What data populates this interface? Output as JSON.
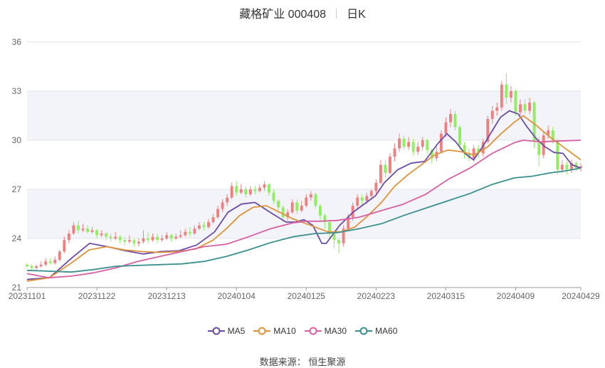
{
  "header": {
    "stock": "藏格矿业 000408",
    "period": "日K"
  },
  "source": {
    "label": "数据来源：",
    "value": "恒生聚源"
  },
  "chart_data": {
    "type": "candlestick",
    "ylim": [
      21,
      36
    ],
    "yticks": [
      "21",
      "24",
      "27",
      "30",
      "33",
      "36"
    ],
    "xticks": [
      {
        "label": "20231101",
        "i": 0
      },
      {
        "label": "20231122",
        "i": 15
      },
      {
        "label": "20231213",
        "i": 30
      },
      {
        "label": "20240104",
        "i": 45
      },
      {
        "label": "20240125",
        "i": 60
      },
      {
        "label": "20240223",
        "i": 75
      },
      {
        "label": "20240315",
        "i": 90
      },
      {
        "label": "20240409",
        "i": 105
      },
      {
        "label": "20240429",
        "i": 119
      }
    ],
    "up_color": "#f08080",
    "down_color": "#90ee60",
    "grid": true,
    "legend_position": "bottom",
    "candles": [
      [
        22.4,
        22.3,
        22.2,
        22.5
      ],
      [
        22.3,
        22.2,
        22.1,
        22.4
      ],
      [
        22.2,
        22.3,
        22.1,
        22.4
      ],
      [
        22.3,
        22.4,
        22.2,
        22.6
      ],
      [
        22.4,
        22.6,
        22.3,
        22.8
      ],
      [
        22.6,
        22.5,
        22.4,
        22.8
      ],
      [
        22.5,
        22.7,
        22.4,
        22.9
      ],
      [
        22.7,
        23.2,
        22.6,
        23.3
      ],
      [
        23.2,
        23.9,
        23.1,
        24.1
      ],
      [
        23.9,
        24.3,
        23.7,
        24.5
      ],
      [
        24.3,
        24.8,
        24.2,
        25.0
      ],
      [
        24.8,
        24.5,
        24.3,
        25.1
      ],
      [
        24.5,
        24.6,
        24.4,
        24.9
      ],
      [
        24.6,
        24.4,
        24.3,
        24.8
      ],
      [
        24.4,
        24.5,
        24.3,
        24.7
      ],
      [
        24.5,
        24.2,
        24.0,
        24.6
      ],
      [
        24.2,
        24.3,
        24.1,
        24.5
      ],
      [
        24.3,
        24.1,
        23.9,
        24.4
      ],
      [
        24.1,
        24.0,
        23.8,
        24.3
      ],
      [
        24.0,
        24.1,
        23.9,
        24.4
      ],
      [
        24.1,
        23.9,
        23.7,
        24.2
      ],
      [
        23.9,
        23.8,
        23.6,
        24.1
      ],
      [
        23.8,
        23.9,
        23.7,
        24.2
      ],
      [
        23.9,
        23.7,
        23.5,
        24.0
      ],
      [
        23.7,
        23.8,
        23.5,
        24.0
      ],
      [
        23.8,
        24.0,
        23.7,
        24.5
      ],
      [
        24.0,
        23.9,
        23.7,
        24.4
      ],
      [
        23.9,
        24.1,
        23.8,
        24.3
      ],
      [
        24.1,
        23.9,
        23.7,
        24.3
      ],
      [
        23.9,
        24.0,
        23.8,
        24.2
      ],
      [
        24.0,
        24.2,
        23.9,
        24.4
      ],
      [
        24.2,
        24.0,
        23.8,
        24.3
      ],
      [
        24.0,
        24.1,
        23.9,
        24.3
      ],
      [
        24.1,
        24.2,
        24.0,
        24.5
      ],
      [
        24.2,
        24.4,
        24.1,
        24.6
      ],
      [
        24.4,
        24.3,
        24.1,
        24.7
      ],
      [
        24.3,
        24.6,
        24.2,
        24.8
      ],
      [
        24.6,
        24.8,
        24.5,
        25.0
      ],
      [
        24.8,
        24.7,
        24.5,
        25.0
      ],
      [
        24.7,
        25.0,
        24.6,
        25.2
      ],
      [
        25.0,
        25.3,
        24.9,
        25.5
      ],
      [
        25.3,
        25.8,
        25.2,
        26.0
      ],
      [
        25.8,
        26.2,
        25.6,
        26.4
      ],
      [
        26.2,
        26.5,
        26.0,
        26.7
      ],
      [
        26.5,
        27.2,
        26.4,
        27.4
      ],
      [
        27.2,
        26.8,
        26.6,
        27.5
      ],
      [
        26.8,
        27.0,
        26.7,
        27.3
      ],
      [
        27.0,
        26.7,
        26.5,
        27.2
      ],
      [
        26.7,
        27.0,
        26.6,
        27.2
      ],
      [
        27.0,
        26.9,
        26.7,
        27.2
      ],
      [
        26.9,
        27.1,
        26.8,
        27.3
      ],
      [
        27.1,
        27.3,
        26.9,
        27.5
      ],
      [
        27.3,
        26.8,
        26.6,
        27.4
      ],
      [
        26.8,
        26.3,
        26.1,
        27.0
      ],
      [
        26.3,
        25.9,
        25.6,
        26.4
      ],
      [
        25.9,
        25.3,
        25.0,
        26.0
      ],
      [
        25.3,
        25.6,
        25.1,
        25.8
      ],
      [
        25.6,
        26.2,
        25.5,
        26.4
      ],
      [
        26.2,
        25.7,
        25.5,
        26.4
      ],
      [
        25.7,
        26.0,
        25.6,
        26.3
      ],
      [
        26.0,
        26.5,
        25.9,
        26.7
      ],
      [
        26.5,
        26.7,
        26.3,
        26.9
      ],
      [
        26.7,
        26.0,
        25.8,
        26.8
      ],
      [
        26.0,
        25.4,
        25.1,
        26.1
      ],
      [
        25.4,
        25.0,
        24.6,
        25.5
      ],
      [
        25.0,
        24.3,
        24.0,
        25.1
      ],
      [
        24.3,
        23.9,
        23.4,
        24.4
      ],
      [
        23.9,
        23.7,
        23.1,
        24.0
      ],
      [
        23.7,
        24.6,
        23.5,
        24.8
      ],
      [
        24.6,
        25.3,
        24.5,
        25.5
      ],
      [
        25.3,
        26.0,
        25.1,
        26.2
      ],
      [
        26.0,
        26.5,
        25.8,
        26.7
      ],
      [
        26.5,
        26.3,
        26.0,
        26.7
      ],
      [
        26.3,
        26.6,
        26.1,
        26.8
      ],
      [
        26.6,
        26.9,
        26.4,
        27.0
      ],
      [
        26.9,
        27.4,
        26.7,
        27.6
      ],
      [
        27.4,
        28.5,
        27.3,
        28.8
      ],
      [
        28.5,
        28.0,
        27.7,
        28.8
      ],
      [
        28.0,
        29.0,
        27.9,
        29.2
      ],
      [
        29.0,
        29.5,
        28.7,
        29.8
      ],
      [
        29.5,
        30.1,
        29.3,
        30.4
      ],
      [
        30.1,
        29.6,
        29.4,
        30.3
      ],
      [
        29.6,
        29.9,
        29.4,
        30.2
      ],
      [
        29.9,
        29.3,
        29.1,
        30.1
      ],
      [
        29.3,
        29.6,
        29.1,
        29.9
      ],
      [
        29.6,
        30.0,
        29.4,
        30.2
      ],
      [
        30.0,
        29.4,
        29.2,
        30.1
      ],
      [
        29.4,
        28.9,
        28.6,
        29.5
      ],
      [
        28.9,
        29.3,
        28.7,
        29.6
      ],
      [
        29.3,
        30.4,
        29.2,
        30.6
      ],
      [
        30.4,
        31.1,
        30.2,
        31.4
      ],
      [
        31.1,
        31.6,
        30.8,
        31.9
      ],
      [
        31.6,
        30.8,
        30.6,
        31.8
      ],
      [
        30.8,
        29.7,
        29.4,
        30.9
      ],
      [
        29.7,
        29.2,
        28.9,
        29.9
      ],
      [
        29.2,
        28.9,
        28.7,
        29.5
      ],
      [
        28.9,
        29.5,
        28.7,
        29.7
      ],
      [
        29.5,
        29.2,
        28.9,
        29.7
      ],
      [
        29.2,
        29.9,
        29.0,
        30.1
      ],
      [
        29.9,
        31.3,
        29.8,
        31.5
      ],
      [
        31.3,
        31.8,
        31.0,
        32.1
      ],
      [
        31.8,
        32.0,
        31.5,
        32.3
      ],
      [
        32.0,
        33.4,
        31.8,
        33.6
      ],
      [
        33.4,
        32.6,
        32.2,
        34.1
      ],
      [
        32.6,
        33.0,
        32.3,
        33.3
      ],
      [
        33.0,
        31.7,
        31.5,
        33.1
      ],
      [
        31.7,
        32.2,
        31.5,
        32.5
      ],
      [
        32.2,
        31.8,
        31.6,
        32.5
      ],
      [
        31.8,
        32.3,
        31.6,
        32.6
      ],
      [
        32.3,
        29.9,
        29.5,
        32.4
      ],
      [
        29.9,
        29.1,
        28.4,
        30.2
      ],
      [
        29.1,
        30.3,
        28.9,
        30.5
      ],
      [
        30.3,
        30.6,
        30.1,
        30.9
      ],
      [
        30.6,
        30.0,
        29.8,
        30.8
      ],
      [
        30.0,
        28.2,
        27.9,
        30.1
      ],
      [
        28.2,
        28.5,
        28.0,
        28.8
      ],
      [
        28.5,
        28.2,
        27.9,
        28.7
      ],
      [
        28.2,
        28.6,
        28.0,
        28.8
      ],
      [
        28.6,
        28.3,
        28.1,
        28.7
      ],
      [
        28.3,
        28.4,
        28.1,
        28.6
      ]
    ],
    "series": [
      {
        "name": "MA5",
        "color": "#6a4ca8",
        "values": [
          [
            0,
            21.5
          ],
          [
            5,
            21.6
          ],
          [
            10,
            22.8
          ],
          [
            14,
            23.7
          ],
          [
            18,
            23.5
          ],
          [
            22,
            23.25
          ],
          [
            26,
            23.05
          ],
          [
            30,
            23.2
          ],
          [
            34,
            23.25
          ],
          [
            38,
            23.6
          ],
          [
            42,
            24.4
          ],
          [
            45,
            25.6
          ],
          [
            48,
            26.1
          ],
          [
            51,
            26.2
          ],
          [
            55,
            25.5
          ],
          [
            58,
            25.0
          ],
          [
            60,
            25.0
          ],
          [
            62,
            25.15
          ],
          [
            64,
            24.8
          ],
          [
            66,
            23.7
          ],
          [
            67,
            23.7
          ],
          [
            70,
            24.8
          ],
          [
            73,
            25.6
          ],
          [
            76,
            26.2
          ],
          [
            78,
            26.6
          ],
          [
            80,
            27.4
          ],
          [
            83,
            28.2
          ],
          [
            86,
            28.6
          ],
          [
            89,
            28.7
          ],
          [
            92,
            29.8
          ],
          [
            94,
            30.4
          ],
          [
            96,
            29.9
          ],
          [
            98,
            29.2
          ],
          [
            100,
            28.8
          ],
          [
            102,
            29.6
          ],
          [
            104,
            30.5
          ],
          [
            106,
            31.4
          ],
          [
            108,
            31.8
          ],
          [
            110,
            31.6
          ],
          [
            112,
            30.8
          ],
          [
            114,
            30.1
          ],
          [
            116,
            29.6
          ],
          [
            118,
            29.25
          ],
          [
            120,
            29.2
          ],
          [
            122,
            28.5
          ],
          [
            124,
            28.3
          ]
        ]
      },
      {
        "name": "MA10",
        "color": "#e0933a",
        "values": [
          [
            0,
            21.4
          ],
          [
            5,
            21.6
          ],
          [
            10,
            22.5
          ],
          [
            14,
            23.3
          ],
          [
            18,
            23.5
          ],
          [
            22,
            23.3
          ],
          [
            26,
            23.2
          ],
          [
            30,
            23.15
          ],
          [
            34,
            23.2
          ],
          [
            38,
            23.35
          ],
          [
            42,
            23.9
          ],
          [
            45,
            24.6
          ],
          [
            48,
            25.4
          ],
          [
            51,
            25.9
          ],
          [
            54,
            26.0
          ],
          [
            57,
            25.6
          ],
          [
            60,
            25.2
          ],
          [
            63,
            24.9
          ],
          [
            66,
            24.6
          ],
          [
            68,
            24.4
          ],
          [
            71,
            24.4
          ],
          [
            74,
            24.7
          ],
          [
            77,
            25.4
          ],
          [
            80,
            26.2
          ],
          [
            83,
            27.2
          ],
          [
            86,
            27.9
          ],
          [
            89,
            28.5
          ],
          [
            92,
            29.1
          ],
          [
            95,
            29.4
          ],
          [
            98,
            29.3
          ],
          [
            101,
            29.1
          ],
          [
            104,
            29.6
          ],
          [
            107,
            30.4
          ],
          [
            110,
            31.1
          ],
          [
            112,
            31.5
          ],
          [
            115,
            30.9
          ],
          [
            118,
            30.2
          ],
          [
            121,
            29.6
          ],
          [
            123,
            29.2
          ],
          [
            125,
            28.8
          ]
        ]
      },
      {
        "name": "MA30",
        "color": "#d85fa3",
        "values": [
          [
            0,
            21.85
          ],
          [
            5,
            21.6
          ],
          [
            10,
            21.7
          ],
          [
            15,
            21.9
          ],
          [
            20,
            22.2
          ],
          [
            25,
            22.6
          ],
          [
            30,
            22.9
          ],
          [
            35,
            23.2
          ],
          [
            40,
            23.5
          ],
          [
            45,
            23.65
          ],
          [
            50,
            24.1
          ],
          [
            55,
            24.6
          ],
          [
            60,
            24.95
          ],
          [
            63,
            25.05
          ],
          [
            66,
            25.05
          ],
          [
            70,
            25.1
          ],
          [
            75,
            25.3
          ],
          [
            80,
            25.7
          ],
          [
            85,
            26.1
          ],
          [
            90,
            26.7
          ],
          [
            95,
            27.6
          ],
          [
            100,
            28.3
          ],
          [
            105,
            29.2
          ],
          [
            110,
            29.85
          ],
          [
            112,
            30.0
          ],
          [
            116,
            29.9
          ],
          [
            120,
            29.95
          ],
          [
            125,
            30.0
          ]
        ]
      },
      {
        "name": "MA60",
        "color": "#3a8f8f",
        "values": [
          [
            0,
            22.05
          ],
          [
            5,
            22.0
          ],
          [
            10,
            21.95
          ],
          [
            15,
            22.1
          ],
          [
            20,
            22.3
          ],
          [
            25,
            22.35
          ],
          [
            30,
            22.4
          ],
          [
            35,
            22.45
          ],
          [
            40,
            22.6
          ],
          [
            45,
            22.9
          ],
          [
            50,
            23.3
          ],
          [
            55,
            23.75
          ],
          [
            60,
            24.1
          ],
          [
            65,
            24.3
          ],
          [
            70,
            24.35
          ],
          [
            75,
            24.6
          ],
          [
            80,
            24.9
          ],
          [
            85,
            25.4
          ],
          [
            90,
            25.85
          ],
          [
            95,
            26.3
          ],
          [
            100,
            26.75
          ],
          [
            105,
            27.3
          ],
          [
            110,
            27.7
          ],
          [
            114,
            27.8
          ],
          [
            118,
            28.0
          ],
          [
            122,
            28.15
          ],
          [
            125,
            28.3
          ]
        ]
      }
    ]
  }
}
